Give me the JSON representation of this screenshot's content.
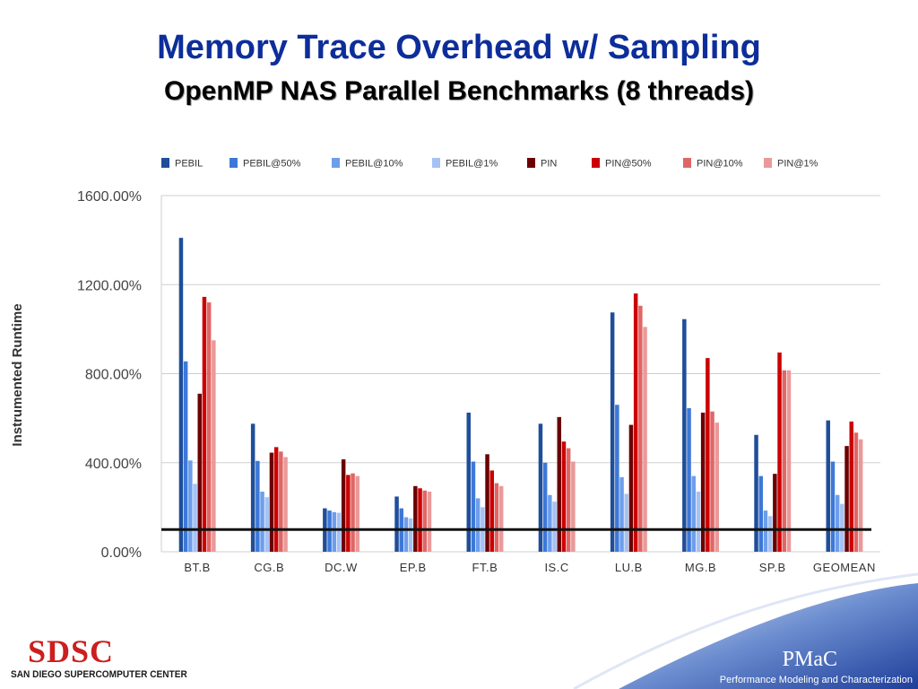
{
  "slide": {
    "title": "Memory Trace Overhead w/ Sampling",
    "subtitle": "OpenMP NAS Parallel Benchmarks (8 threads)"
  },
  "footer": {
    "logo_mark": "SDSC",
    "logo_name": "SAN DIEGO SUPERCOMPUTER CENTER",
    "brand": "PMaC",
    "brand_sub": "Performance Modeling and Characterization"
  },
  "chart_data": {
    "type": "bar",
    "title": "",
    "xlabel": "",
    "ylabel": "Instrumented Runtime",
    "ylim": [
      0,
      1600
    ],
    "yticks": [
      "0.00%",
      "400.00%",
      "800.00%",
      "1200.00%",
      "1600.00%"
    ],
    "ytick_values": [
      0,
      400,
      800,
      1200,
      1600
    ],
    "reference_line": 100,
    "grid": true,
    "legend_position": "top",
    "categories": [
      "BT.B",
      "CG.B",
      "DC.W",
      "EP.B",
      "FT.B",
      "IS.C",
      "LU.B",
      "MG.B",
      "SP.B",
      "GEOMEAN"
    ],
    "series": [
      {
        "name": "PEBIL",
        "color": "#1f4e9a",
        "values": [
          1410,
          575,
          195,
          248,
          625,
          575,
          1075,
          1045,
          525,
          590
        ]
      },
      {
        "name": "PEBIL@50%",
        "color": "#3d78d8",
        "values": [
          855,
          408,
          185,
          195,
          405,
          400,
          660,
          645,
          340,
          405
        ]
      },
      {
        "name": "PEBIL@10%",
        "color": "#6d9eeb",
        "values": [
          410,
          270,
          178,
          155,
          240,
          255,
          335,
          340,
          185,
          255
        ]
      },
      {
        "name": "PEBIL@1%",
        "color": "#a4c2f4",
        "values": [
          305,
          245,
          175,
          150,
          200,
          225,
          260,
          270,
          160,
          215
        ]
      },
      {
        "name": "PIN",
        "color": "#6b0000",
        "values": [
          710,
          445,
          415,
          295,
          438,
          605,
          570,
          625,
          350,
          475
        ]
      },
      {
        "name": "PIN@50%",
        "color": "#cc0000",
        "values": [
          1145,
          470,
          345,
          285,
          365,
          495,
          1160,
          870,
          895,
          585
        ]
      },
      {
        "name": "PIN@10%",
        "color": "#e06666",
        "values": [
          1120,
          450,
          352,
          275,
          308,
          465,
          1105,
          630,
          815,
          535
        ]
      },
      {
        "name": "PIN@1%",
        "color": "#ea9999",
        "values": [
          950,
          425,
          340,
          270,
          295,
          405,
          1010,
          580,
          815,
          505
        ]
      }
    ]
  }
}
